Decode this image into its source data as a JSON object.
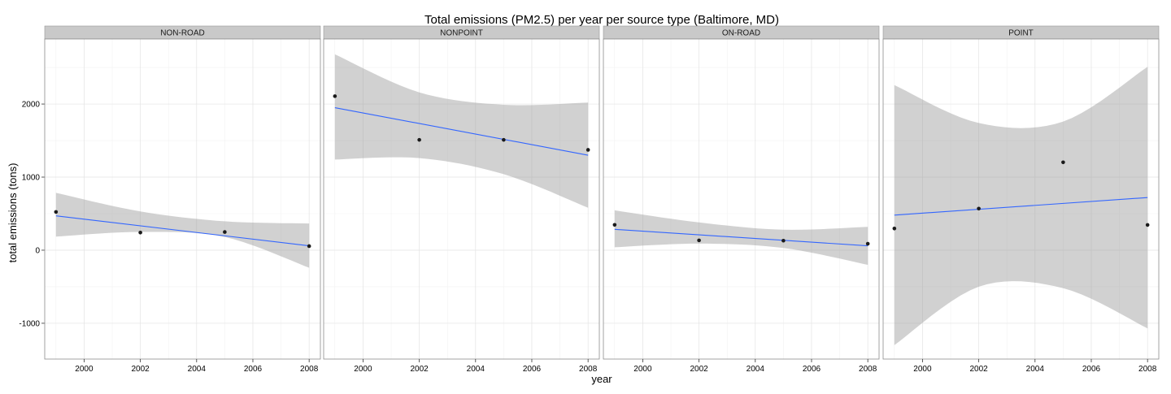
{
  "chart_data": {
    "type": "scatter",
    "title": "Total emissions (PM2.5) per year per source type (Baltimore, MD)",
    "xlabel": "year",
    "ylabel": "total emissions (tons)",
    "xlim": [
      1998.6,
      2008.4
    ],
    "ylim": [
      -1490,
      2890
    ],
    "x_ticks": [
      "2000",
      "2002",
      "2004",
      "2006",
      "2008"
    ],
    "y_ticks": [
      "-1000",
      "0",
      "1000",
      "2000"
    ],
    "grid": true,
    "facets": [
      "NON-ROAD",
      "NONPOINT",
      "ON-ROAD",
      "POINT"
    ],
    "series": [
      {
        "name": "NON-ROAD",
        "x": [
          1999,
          2002,
          2005,
          2008
        ],
        "y": [
          522.9,
          240.8,
          248.9,
          55.8
        ],
        "fit": [
          470,
          60
        ],
        "band_lower": [
          185,
          250,
          180,
          -240
        ],
        "band_upper": [
          785,
          530,
          395,
          365
        ]
      },
      {
        "name": "NONPOINT",
        "x": [
          1999,
          2002,
          2005,
          2008
        ],
        "y": [
          2107.6,
          1509.5,
          1509.5,
          1373.2
        ],
        "fit": [
          1950,
          1300
        ],
        "band_lower": [
          1240,
          1260,
          1040,
          580
        ],
        "band_upper": [
          2680,
          2160,
          1990,
          2020
        ]
      },
      {
        "name": "ON-ROAD",
        "x": [
          1999,
          2002,
          2005,
          2008
        ],
        "y": [
          346.8,
          134.3,
          130.4,
          88.3
        ],
        "fit": [
          285,
          60
        ],
        "band_lower": [
          40,
          90,
          30,
          -200
        ],
        "band_upper": [
          545,
          380,
          280,
          320
        ]
      },
      {
        "name": "POINT",
        "x": [
          1999,
          2002,
          2005,
          2008
        ],
        "y": [
          296.8,
          569.3,
          1202.5,
          344.98
        ],
        "fit": [
          480,
          720
        ],
        "band_lower": [
          -1300,
          -500,
          -520,
          -1070
        ],
        "band_upper": [
          2260,
          1740,
          1760,
          2510
        ]
      }
    ]
  }
}
